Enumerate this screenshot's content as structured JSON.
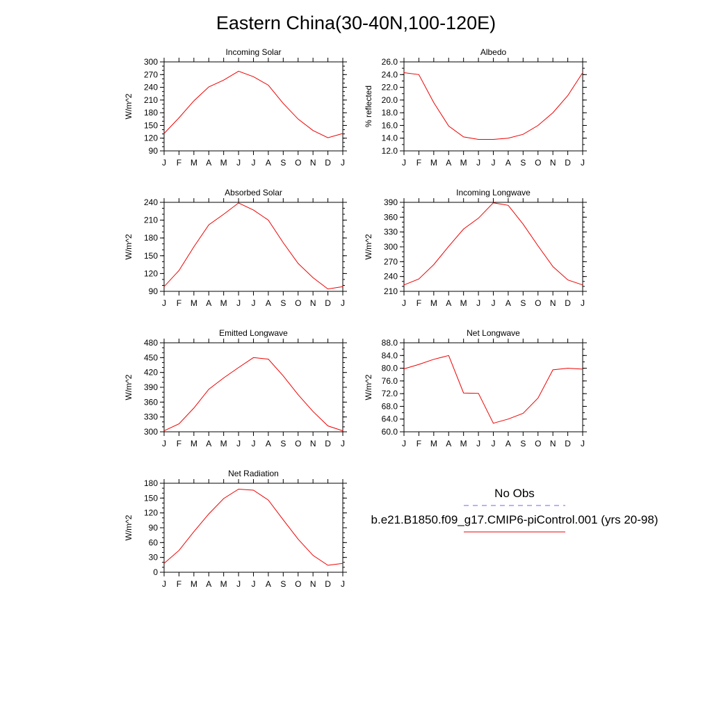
{
  "main_title": "Eastern China(30-40N,100-120E)",
  "months": [
    "J",
    "F",
    "M",
    "A",
    "M",
    "J",
    "J",
    "A",
    "S",
    "O",
    "N",
    "D",
    "J"
  ],
  "legend": {
    "obs_label": "No Obs",
    "obs_color": "#6a6af0",
    "model_label": "b.e21.B1850.f09_g17.CMIP6-piControl.001 (yrs 20-98)",
    "model_color": "#ee0000"
  },
  "chart_data": [
    {
      "type": "line",
      "title": "Incoming Solar",
      "ylabel": "W/m^2",
      "ylim": [
        90,
        300
      ],
      "yticks": [
        "90",
        "120",
        "150",
        "180",
        "210",
        "240",
        "270",
        "300"
      ],
      "ytick_values": [
        90,
        120,
        150,
        180,
        210,
        240,
        270,
        300
      ],
      "yminor": 10,
      "x": [
        "J",
        "F",
        "M",
        "A",
        "M",
        "J",
        "J",
        "A",
        "S",
        "O",
        "N",
        "D",
        "J"
      ],
      "series": [
        {
          "values": [
            131,
            168,
            208,
            241,
            257,
            278,
            265,
            245,
            202,
            165,
            138,
            121,
            131
          ]
        }
      ]
    },
    {
      "type": "line",
      "title": "Albedo",
      "ylabel": "% reflected",
      "ylim": [
        12,
        26
      ],
      "yticks": [
        "12.0",
        "14.0",
        "16.0",
        "18.0",
        "20.0",
        "22.0",
        "24.0",
        "26.0"
      ],
      "ytick_values": [
        12,
        14,
        16,
        18,
        20,
        22,
        24,
        26
      ],
      "yminor": 1,
      "x": [
        "J",
        "F",
        "M",
        "A",
        "M",
        "J",
        "J",
        "A",
        "S",
        "O",
        "N",
        "D",
        "J"
      ],
      "series": [
        {
          "values": [
            24.3,
            24.0,
            19.6,
            15.9,
            14.2,
            13.8,
            13.8,
            14.0,
            14.6,
            16.0,
            18.0,
            20.7,
            24.3
          ]
        }
      ]
    },
    {
      "type": "line",
      "title": "Absorbed Solar",
      "ylabel": "W/m^2",
      "ylim": [
        90,
        240
      ],
      "yticks": [
        "90",
        "120",
        "150",
        "180",
        "210",
        "240"
      ],
      "ytick_values": [
        90,
        120,
        150,
        180,
        210,
        240
      ],
      "yminor": 10,
      "x": [
        "J",
        "F",
        "M",
        "A",
        "M",
        "J",
        "J",
        "A",
        "S",
        "O",
        "N",
        "D",
        "J"
      ],
      "series": [
        {
          "values": [
            98,
            125,
            165,
            202,
            220,
            239,
            227,
            210,
            172,
            137,
            113,
            94,
            98
          ]
        }
      ]
    },
    {
      "type": "line",
      "title": "Incoming Longwave",
      "ylabel": "W/m^2",
      "ylim": [
        210,
        390
      ],
      "yticks": [
        "210",
        "240",
        "270",
        "300",
        "330",
        "360",
        "390"
      ],
      "ytick_values": [
        210,
        240,
        270,
        300,
        330,
        360,
        390
      ],
      "yminor": 10,
      "x": [
        "J",
        "F",
        "M",
        "A",
        "M",
        "J",
        "J",
        "A",
        "S",
        "O",
        "N",
        "D",
        "J"
      ],
      "series": [
        {
          "values": [
            223,
            235,
            264,
            301,
            336,
            358,
            389,
            384,
            346,
            302,
            260,
            233,
            223
          ]
        }
      ]
    },
    {
      "type": "line",
      "title": "Emitted Longwave",
      "ylabel": "W/m^2",
      "ylim": [
        300,
        480
      ],
      "yticks": [
        "300",
        "330",
        "360",
        "390",
        "420",
        "450",
        "480"
      ],
      "ytick_values": [
        300,
        330,
        360,
        390,
        420,
        450,
        480
      ],
      "yminor": 10,
      "x": [
        "J",
        "F",
        "M",
        "A",
        "M",
        "J",
        "J",
        "A",
        "S",
        "O",
        "N",
        "D",
        "J"
      ],
      "series": [
        {
          "values": [
            302,
            316,
            348,
            386,
            409,
            430,
            450,
            447,
            413,
            375,
            341,
            312,
            302
          ]
        }
      ]
    },
    {
      "type": "line",
      "title": "Net Longwave",
      "ylabel": "W/m^2",
      "ylim": [
        60,
        88
      ],
      "yticks": [
        "60.0",
        "64.0",
        "68.0",
        "72.0",
        "76.0",
        "80.0",
        "84.0",
        "88.0"
      ],
      "ytick_values": [
        60,
        64,
        68,
        72,
        76,
        80,
        84,
        88
      ],
      "yminor": 2,
      "x": [
        "J",
        "F",
        "M",
        "A",
        "M",
        "J",
        "J",
        "A",
        "S",
        "O",
        "N",
        "D",
        "J"
      ],
      "series": [
        {
          "values": [
            79.8,
            81.2,
            82.8,
            84.0,
            72.2,
            72.1,
            62.7,
            64.0,
            65.8,
            70.6,
            79.5,
            80.0,
            79.7
          ]
        }
      ]
    },
    {
      "type": "line",
      "title": "Net Radiation",
      "ylabel": "W/m^2",
      "ylim": [
        0,
        180
      ],
      "yticks": [
        "0",
        "30",
        "60",
        "90",
        "120",
        "150",
        "180"
      ],
      "ytick_values": [
        0,
        30,
        60,
        90,
        120,
        150,
        180
      ],
      "yminor": 10,
      "x": [
        "J",
        "F",
        "M",
        "A",
        "M",
        "J",
        "J",
        "A",
        "S",
        "O",
        "N",
        "D",
        "J"
      ],
      "series": [
        {
          "values": [
            18,
            44,
            82,
            118,
            149,
            168,
            166,
            146,
            106,
            67,
            34,
            14,
            18
          ]
        }
      ]
    }
  ]
}
